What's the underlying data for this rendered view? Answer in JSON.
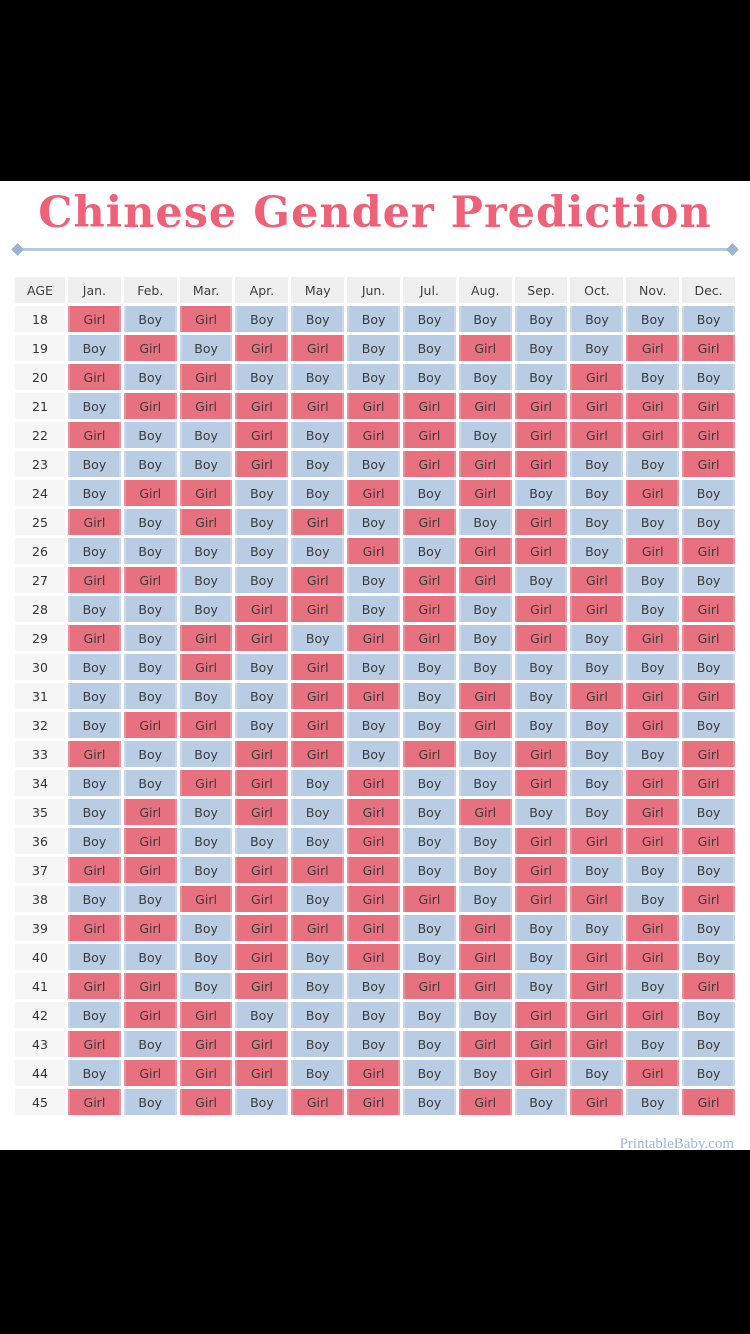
{
  "page": {
    "title": "Chinese Gender Prediction",
    "footer_credit": "PrintableBaby.com"
  },
  "colors": {
    "title_pink": "#ee6179",
    "girl_pink": "#e7717f",
    "boy_blue": "#b8cce4",
    "divider_blue": "#b7c9de",
    "diamond_blue": "#9db4cf",
    "header_bg": "#efefef",
    "footer_blue": "#9fb7d9",
    "letterbox_black": "#000000"
  },
  "chart_data": {
    "type": "table",
    "title": "Chinese Gender Prediction",
    "columns": [
      "AGE",
      "Jan.",
      "Feb.",
      "Mar.",
      "Apr.",
      "May",
      "Jun.",
      "Jul.",
      "Aug.",
      "Sep.",
      "Oct.",
      "Nov.",
      "Dec."
    ],
    "legend": {
      "Girl": "#e7717f",
      "Boy": "#b8cce4"
    },
    "rows": [
      {
        "age": "18",
        "values": [
          "Girl",
          "Boy",
          "Girl",
          "Boy",
          "Boy",
          "Boy",
          "Boy",
          "Boy",
          "Boy",
          "Boy",
          "Boy",
          "Boy"
        ]
      },
      {
        "age": "19",
        "values": [
          "Boy",
          "Girl",
          "Boy",
          "Girl",
          "Girl",
          "Boy",
          "Boy",
          "Girl",
          "Boy",
          "Boy",
          "Girl",
          "Girl"
        ]
      },
      {
        "age": "20",
        "values": [
          "Girl",
          "Boy",
          "Girl",
          "Boy",
          "Boy",
          "Boy",
          "Boy",
          "Boy",
          "Boy",
          "Girl",
          "Boy",
          "Boy"
        ]
      },
      {
        "age": "21",
        "values": [
          "Boy",
          "Girl",
          "Girl",
          "Girl",
          "Girl",
          "Girl",
          "Girl",
          "Girl",
          "Girl",
          "Girl",
          "Girl",
          "Girl"
        ]
      },
      {
        "age": "22",
        "values": [
          "Girl",
          "Boy",
          "Boy",
          "Girl",
          "Boy",
          "Girl",
          "Girl",
          "Boy",
          "Girl",
          "Girl",
          "Girl",
          "Girl"
        ]
      },
      {
        "age": "23",
        "values": [
          "Boy",
          "Boy",
          "Boy",
          "Girl",
          "Boy",
          "Boy",
          "Girl",
          "Girl",
          "Girl",
          "Boy",
          "Boy",
          "Girl"
        ]
      },
      {
        "age": "24",
        "values": [
          "Boy",
          "Girl",
          "Girl",
          "Boy",
          "Boy",
          "Girl",
          "Boy",
          "Girl",
          "Boy",
          "Boy",
          "Girl",
          "Boy"
        ]
      },
      {
        "age": "25",
        "values": [
          "Girl",
          "Boy",
          "Girl",
          "Boy",
          "Girl",
          "Boy",
          "Girl",
          "Boy",
          "Girl",
          "Boy",
          "Boy",
          "Boy"
        ]
      },
      {
        "age": "26",
        "values": [
          "Boy",
          "Boy",
          "Boy",
          "Boy",
          "Boy",
          "Girl",
          "Boy",
          "Girl",
          "Girl",
          "Boy",
          "Girl",
          "Girl"
        ]
      },
      {
        "age": "27",
        "values": [
          "Girl",
          "Girl",
          "Boy",
          "Boy",
          "Girl",
          "Boy",
          "Girl",
          "Girl",
          "Boy",
          "Girl",
          "Boy",
          "Boy"
        ]
      },
      {
        "age": "28",
        "values": [
          "Boy",
          "Boy",
          "Boy",
          "Girl",
          "Girl",
          "Boy",
          "Girl",
          "Boy",
          "Girl",
          "Girl",
          "Boy",
          "Girl"
        ]
      },
      {
        "age": "29",
        "values": [
          "Girl",
          "Boy",
          "Girl",
          "Girl",
          "Boy",
          "Girl",
          "Girl",
          "Boy",
          "Girl",
          "Boy",
          "Girl",
          "Girl"
        ]
      },
      {
        "age": "30",
        "values": [
          "Boy",
          "Boy",
          "Girl",
          "Boy",
          "Girl",
          "Boy",
          "Boy",
          "Boy",
          "Boy",
          "Boy",
          "Boy",
          "Boy"
        ]
      },
      {
        "age": "31",
        "values": [
          "Boy",
          "Boy",
          "Boy",
          "Boy",
          "Girl",
          "Girl",
          "Boy",
          "Girl",
          "Boy",
          "Girl",
          "Girl",
          "Girl"
        ]
      },
      {
        "age": "32",
        "values": [
          "Boy",
          "Girl",
          "Girl",
          "Boy",
          "Girl",
          "Boy",
          "Boy",
          "Girl",
          "Boy",
          "Boy",
          "Girl",
          "Boy"
        ]
      },
      {
        "age": "33",
        "values": [
          "Girl",
          "Boy",
          "Boy",
          "Girl",
          "Girl",
          "Boy",
          "Girl",
          "Boy",
          "Girl",
          "Boy",
          "Boy",
          "Girl"
        ]
      },
      {
        "age": "34",
        "values": [
          "Boy",
          "Boy",
          "Girl",
          "Girl",
          "Boy",
          "Girl",
          "Boy",
          "Boy",
          "Girl",
          "Boy",
          "Girl",
          "Girl"
        ]
      },
      {
        "age": "35",
        "values": [
          "Boy",
          "Girl",
          "Boy",
          "Girl",
          "Boy",
          "Girl",
          "Boy",
          "Girl",
          "Boy",
          "Boy",
          "Girl",
          "Boy"
        ]
      },
      {
        "age": "36",
        "values": [
          "Boy",
          "Girl",
          "Boy",
          "Boy",
          "Boy",
          "Girl",
          "Boy",
          "Boy",
          "Girl",
          "Girl",
          "Girl",
          "Girl"
        ]
      },
      {
        "age": "37",
        "values": [
          "Girl",
          "Girl",
          "Boy",
          "Girl",
          "Girl",
          "Girl",
          "Boy",
          "Boy",
          "Girl",
          "Boy",
          "Boy",
          "Boy"
        ]
      },
      {
        "age": "38",
        "values": [
          "Boy",
          "Boy",
          "Girl",
          "Girl",
          "Boy",
          "Girl",
          "Girl",
          "Boy",
          "Girl",
          "Girl",
          "Boy",
          "Girl"
        ]
      },
      {
        "age": "39",
        "values": [
          "Girl",
          "Girl",
          "Boy",
          "Girl",
          "Girl",
          "Girl",
          "Boy",
          "Girl",
          "Boy",
          "Boy",
          "Girl",
          "Boy"
        ]
      },
      {
        "age": "40",
        "values": [
          "Boy",
          "Boy",
          "Boy",
          "Girl",
          "Boy",
          "Girl",
          "Boy",
          "Girl",
          "Boy",
          "Girl",
          "Girl",
          "Boy"
        ]
      },
      {
        "age": "41",
        "values": [
          "Girl",
          "Girl",
          "Boy",
          "Girl",
          "Boy",
          "Boy",
          "Girl",
          "Girl",
          "Boy",
          "Girl",
          "Boy",
          "Girl"
        ]
      },
      {
        "age": "42",
        "values": [
          "Boy",
          "Girl",
          "Girl",
          "Boy",
          "Boy",
          "Boy",
          "Boy",
          "Boy",
          "Girl",
          "Girl",
          "Girl",
          "Boy"
        ]
      },
      {
        "age": "43",
        "values": [
          "Girl",
          "Boy",
          "Girl",
          "Girl",
          "Boy",
          "Boy",
          "Boy",
          "Girl",
          "Girl",
          "Girl",
          "Boy",
          "Boy"
        ]
      },
      {
        "age": "44",
        "values": [
          "Boy",
          "Girl",
          "Girl",
          "Girl",
          "Boy",
          "Girl",
          "Boy",
          "Boy",
          "Girl",
          "Boy",
          "Girl",
          "Boy"
        ]
      },
      {
        "age": "45",
        "values": [
          "Girl",
          "Boy",
          "Girl",
          "Boy",
          "Girl",
          "Girl",
          "Boy",
          "Girl",
          "Boy",
          "Girl",
          "Boy",
          "Girl"
        ]
      }
    ]
  }
}
